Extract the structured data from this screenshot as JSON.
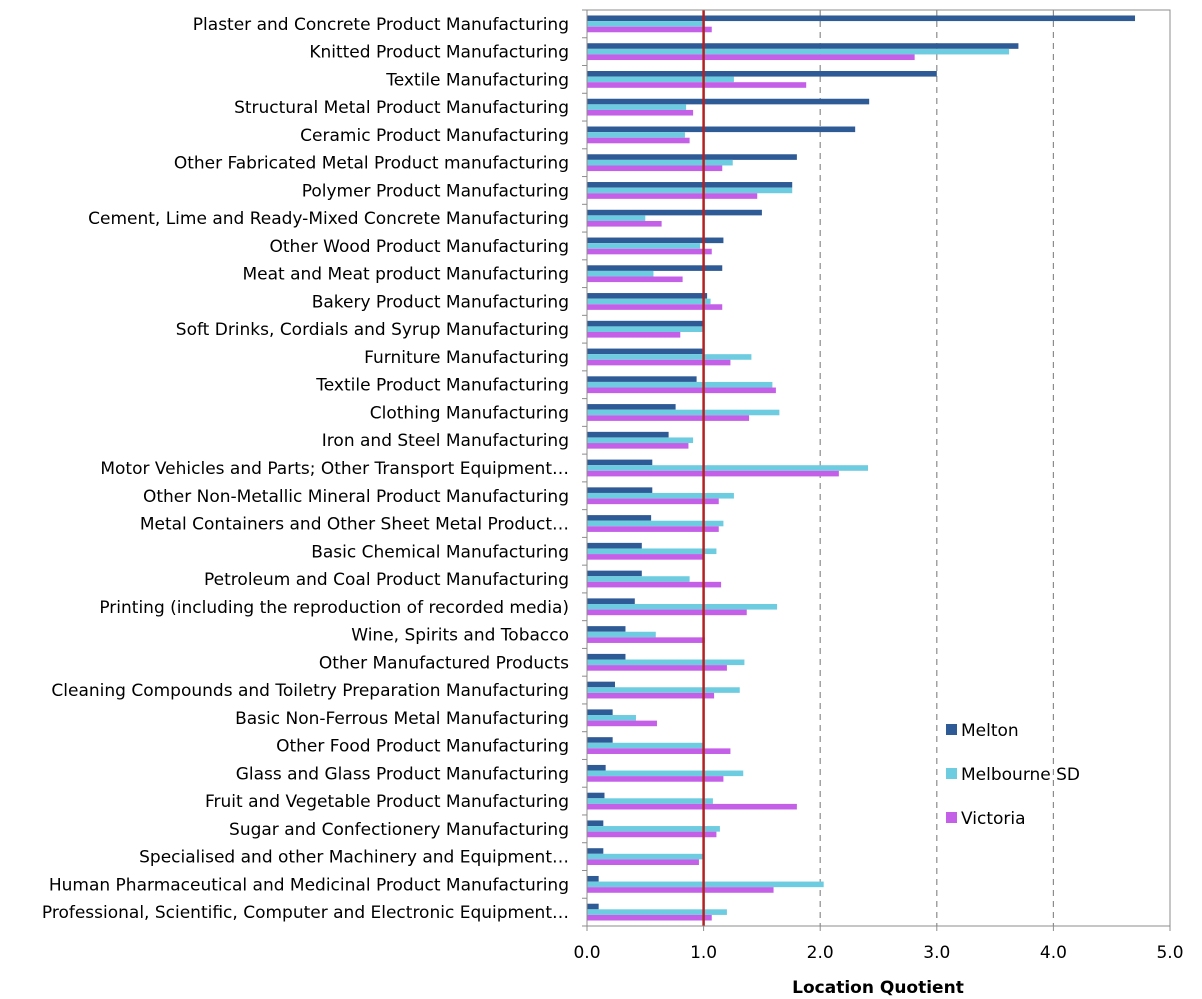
{
  "chart_data": {
    "type": "bar",
    "orientation": "horizontal",
    "xlabel": "Location Quotient",
    "xlim": [
      0,
      5
    ],
    "xticks": [
      "0.0",
      "1.0",
      "2.0",
      "3.0",
      "4.0",
      "5.0"
    ],
    "grid": "vertical dashed",
    "reference_line": {
      "value": 1.0,
      "color": "#b22222"
    },
    "legend_position": "bottom-right",
    "categories": [
      "Plaster and Concrete Product Manufacturing",
      "Knitted Product Manufacturing",
      "Textile Manufacturing",
      "Structural Metal Product Manufacturing",
      "Ceramic Product Manufacturing",
      "Other Fabricated Metal Product manufacturing",
      "Polymer Product Manufacturing",
      "Cement, Lime and Ready-Mixed Concrete Manufacturing",
      "Other Wood Product Manufacturing",
      "Meat and Meat product Manufacturing",
      "Bakery Product Manufacturing",
      "Soft Drinks, Cordials and Syrup Manufacturing",
      "Furniture Manufacturing",
      "Textile Product Manufacturing",
      "Clothing Manufacturing",
      "Iron and Steel Manufacturing",
      "Motor Vehicles and Parts; Other Transport Equipment…",
      "Other Non-Metallic Mineral Product Manufacturing",
      "Metal Containers and Other Sheet Metal Product…",
      "Basic Chemical Manufacturing",
      "Petroleum and Coal Product Manufacturing",
      "Printing (including the reproduction of recorded media)",
      "Wine, Spirits and Tobacco",
      "Other Manufactured Products",
      "Cleaning Compounds and Toiletry Preparation Manufacturing",
      "Basic Non-Ferrous Metal Manufacturing",
      "Other Food Product Manufacturing",
      "Glass and Glass Product Manufacturing",
      "Fruit and Vegetable Product Manufacturing",
      "Sugar and Confectionery Manufacturing",
      "Specialised and other Machinery and Equipment…",
      "Human Pharmaceutical and Medicinal Product Manufacturing",
      "Professional, Scientific, Computer and Electronic Equipment…"
    ],
    "series": [
      {
        "name": "Melton",
        "color": "#2e5a95",
        "values": [
          4.7,
          3.7,
          3.0,
          2.42,
          2.3,
          1.8,
          1.76,
          1.5,
          1.17,
          1.16,
          1.03,
          1.0,
          0.99,
          0.94,
          0.76,
          0.7,
          0.56,
          0.56,
          0.55,
          0.47,
          0.47,
          0.41,
          0.33,
          0.33,
          0.24,
          0.22,
          0.22,
          0.16,
          0.15,
          0.14,
          0.14,
          0.1,
          0.1
        ]
      },
      {
        "name": "Melbourne SD",
        "color": "#6ecce0",
        "values": [
          1.0,
          3.62,
          1.26,
          0.85,
          0.84,
          1.25,
          1.76,
          0.5,
          0.97,
          0.57,
          1.06,
          1.0,
          1.41,
          1.59,
          1.65,
          0.91,
          2.41,
          1.26,
          1.17,
          1.11,
          0.88,
          1.63,
          0.59,
          1.35,
          1.31,
          0.42,
          1.0,
          1.34,
          1.08,
          1.14,
          1.0,
          2.03,
          1.2
        ]
      },
      {
        "name": "Victoria",
        "color": "#c45fe8",
        "values": [
          1.07,
          2.81,
          1.88,
          0.91,
          0.88,
          1.16,
          1.46,
          0.64,
          1.07,
          0.82,
          1.16,
          0.8,
          1.23,
          1.62,
          1.39,
          0.87,
          2.16,
          1.13,
          1.13,
          1.0,
          1.15,
          1.37,
          1.01,
          1.2,
          1.09,
          0.6,
          1.23,
          1.17,
          1.8,
          1.11,
          0.96,
          1.6,
          1.07
        ]
      }
    ]
  }
}
